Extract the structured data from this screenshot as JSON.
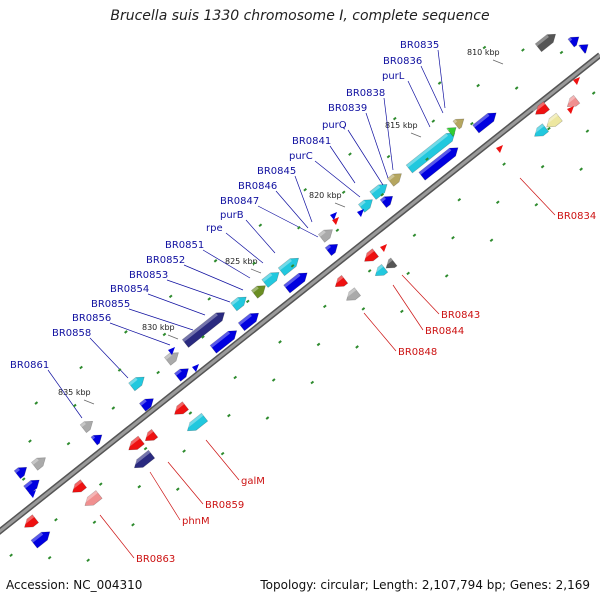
{
  "title": "Brucella suis 1330 chromosome I, complete sequence",
  "accession_text": "Accession: NC_004310",
  "topology_text": "Topology: circular; Length: 2,107,794 bp; Genes: 2,169",
  "colors": {
    "backbone": "#8a8a8a",
    "blue": "#0000e0",
    "cyan": "#22c8de",
    "red": "#ee1111",
    "pink": "#f09090",
    "gray": "#aaaaaa",
    "dark_gray": "#555555",
    "olive": "#6b8e23",
    "khaki": "#b5a660",
    "yellow": "#ede7a0",
    "green": "#33cc33",
    "navy": "#2a2a80",
    "label_blue": "#1010a0",
    "label_red": "#cc1111"
  },
  "kbp_ticks": [
    "810 kbp",
    "815 kbp",
    "820 kbp",
    "825 kbp",
    "830 kbp",
    "835 kbp"
  ],
  "top_labels": [
    "BR0835",
    "BR0836",
    "purL",
    "BR0838",
    "BR0839",
    "purQ",
    "BR0841",
    "purC",
    "BR0845",
    "BR0846",
    "BR0847",
    "purB",
    "rpe",
    "BR0851",
    "BR0852",
    "BR0853",
    "BR0854",
    "BR0855",
    "BR0856",
    "BR0858",
    "BR0861"
  ],
  "bottom_labels": [
    "BR0834",
    "BR0843",
    "BR0844",
    "BR0848",
    "galM",
    "BR0859",
    "phnM",
    "BR0863"
  ]
}
